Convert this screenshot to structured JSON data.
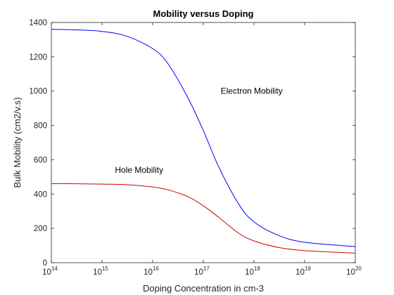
{
  "chart_data": {
    "type": "line",
    "title": "Mobility versus Doping",
    "xlabel": "Doping Concentration in cm-3",
    "ylabel": "Bulk Mobility (cm2/v.s)",
    "x_scale": "log",
    "xlim": [
      100000000000000.0,
      1e+20
    ],
    "ylim": [
      0,
      1400
    ],
    "x_ticks": [
      {
        "base": "10",
        "exp": "14"
      },
      {
        "base": "10",
        "exp": "15"
      },
      {
        "base": "10",
        "exp": "16"
      },
      {
        "base": "10",
        "exp": "17"
      },
      {
        "base": "10",
        "exp": "18"
      },
      {
        "base": "10",
        "exp": "19"
      },
      {
        "base": "10",
        "exp": "20"
      }
    ],
    "y_ticks": [
      "0",
      "200",
      "400",
      "600",
      "800",
      "1000",
      "1200",
      "1400"
    ],
    "grid": false,
    "x": [
      100000000000000.0,
      300000000000000.0,
      1000000000000000.0,
      3000000000000000.0,
      1e+16,
      2e+16,
      5e+16,
      1e+17,
      2e+17,
      5e+17,
      1e+18,
      3e+18,
      1e+19,
      1e+20
    ],
    "series": [
      {
        "name": "Electron Mobility",
        "color": "#0000ff",
        "values": [
          1360,
          1357,
          1348,
          1321,
          1248,
          1160,
          959,
          770,
          560,
          341,
          238,
          160,
          119,
          94
        ]
      },
      {
        "name": "Hole Mobility",
        "color": "#cc0000",
        "values": [
          461,
          460,
          458,
          455,
          441,
          425,
          384,
          332,
          265,
          172,
          127,
          89,
          70,
          56
        ]
      }
    ],
    "annotations": [
      {
        "text": "Electron Mobility",
        "x": 2.2e+17,
        "y": 1000
      },
      {
        "text": "Hole Mobility",
        "x": 1800000000000000.0,
        "y": 540
      }
    ]
  }
}
